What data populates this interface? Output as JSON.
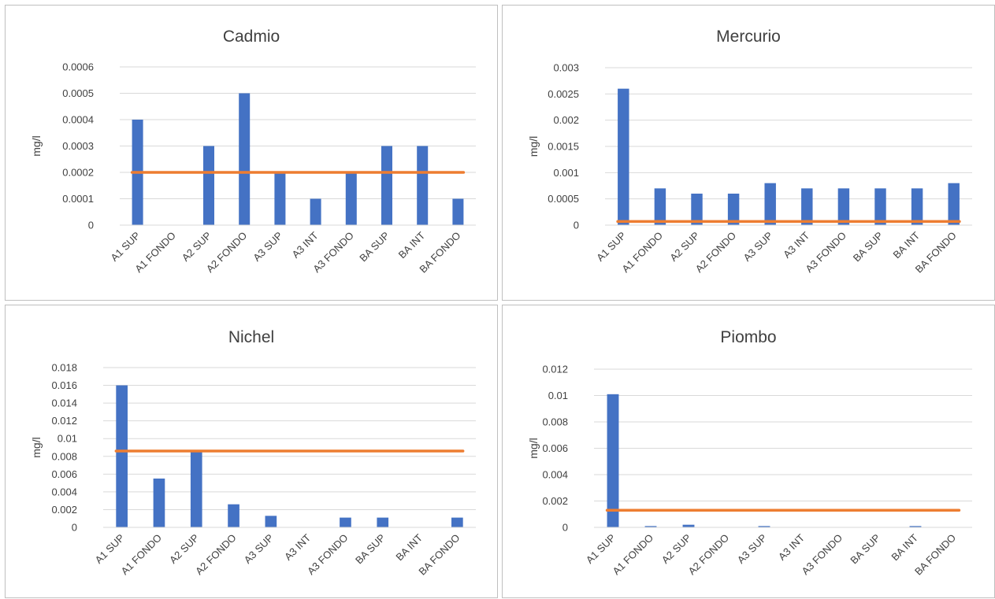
{
  "chart_data": [
    {
      "type": "bar",
      "title": "Cadmio",
      "ylabel": "mg/l",
      "xlabel": "",
      "categories": [
        "A1 SUP",
        "A1 FONDO",
        "A2 SUP",
        "A2 FONDO",
        "A3 SUP",
        "A3 INT",
        "A3 FONDO",
        "BA SUP",
        "BA INT",
        "BA FONDO"
      ],
      "yticks": [
        "0",
        "0.0001",
        "0.0002",
        "0.0003",
        "0.0004",
        "0.0005",
        "0.0006"
      ],
      "ylim": [
        0,
        0.0006
      ],
      "grid": true,
      "series": [
        {
          "kind": "bar",
          "color": "#4472c4",
          "values": [
            0.0004,
            0,
            0.0003,
            0.0005,
            0.0002,
            0.0001,
            0.0002,
            0.0003,
            0.0003,
            0.0001
          ]
        },
        {
          "kind": "line",
          "color": "#ed7d31",
          "values": [
            0.0002,
            0.0002,
            0.0002,
            0.0002,
            0.0002,
            0.0002,
            0.0002,
            0.0002,
            0.0002,
            0.0002
          ]
        }
      ]
    },
    {
      "type": "bar",
      "title": "Mercurio",
      "ylabel": "mg/l",
      "xlabel": "",
      "categories": [
        "A1 SUP",
        "A1 FONDO",
        "A2 SUP",
        "A2 FONDO",
        "A3 SUP",
        "A3 INT",
        "A3 FONDO",
        "BA SUP",
        "BA INT",
        "BA FONDO"
      ],
      "yticks": [
        "0",
        "0.0005",
        "0.001",
        "0.0015",
        "0.002",
        "0.0025",
        "0.003"
      ],
      "ylim": [
        0,
        0.003
      ],
      "grid": true,
      "series": [
        {
          "kind": "bar",
          "color": "#4472c4",
          "values": [
            0.0026,
            0.0007,
            0.0006,
            0.0006,
            0.0008,
            0.0007,
            0.0007,
            0.0007,
            0.0007,
            0.0008
          ]
        },
        {
          "kind": "line",
          "color": "#ed7d31",
          "values": [
            7e-05,
            7e-05,
            7e-05,
            7e-05,
            7e-05,
            7e-05,
            7e-05,
            7e-05,
            7e-05,
            7e-05
          ]
        }
      ]
    },
    {
      "type": "bar",
      "title": "Nichel",
      "ylabel": "mg/l",
      "xlabel": "",
      "categories": [
        "A1 SUP",
        "A1 FONDO",
        "A2 SUP",
        "A2 FONDO",
        "A3 SUP",
        "A3 INT",
        "A3 FONDO",
        "BA SUP",
        "BA INT",
        "BA FONDO"
      ],
      "yticks": [
        "0",
        "0.002",
        "0.004",
        "0.006",
        "0.008",
        "0.01",
        "0.012",
        "0.014",
        "0.016",
        "0.018"
      ],
      "ylim": [
        0,
        0.018
      ],
      "grid": true,
      "series": [
        {
          "kind": "bar",
          "color": "#4472c4",
          "values": [
            0.016,
            0.0055,
            0.0086,
            0.0026,
            0.0013,
            0,
            0.0011,
            0.0011,
            0,
            0.0011
          ]
        },
        {
          "kind": "line",
          "color": "#ed7d31",
          "values": [
            0.0086,
            0.0086,
            0.0086,
            0.0086,
            0.0086,
            0.0086,
            0.0086,
            0.0086,
            0.0086,
            0.0086
          ]
        }
      ]
    },
    {
      "type": "bar",
      "title": "Piombo",
      "ylabel": "mg/l",
      "xlabel": "",
      "categories": [
        "A1 SUP",
        "A1 FONDO",
        "A2 SUP",
        "A2 FONDO",
        "A3 SUP",
        "A3 INT",
        "A3 FONDO",
        "BA SUP",
        "BA INT",
        "BA FONDO"
      ],
      "yticks": [
        "0",
        "0.002",
        "0.004",
        "0.006",
        "0.008",
        "0.01",
        "0.012"
      ],
      "ylim": [
        0,
        0.012
      ],
      "grid": true,
      "series": [
        {
          "kind": "bar",
          "color": "#4472c4",
          "values": [
            0.0101,
            0.0001,
            0.0002,
            0,
            0.0001,
            0,
            0,
            0,
            0.0001,
            0
          ]
        },
        {
          "kind": "line",
          "color": "#ed7d31",
          "values": [
            0.0013,
            0.0013,
            0.0013,
            0.0013,
            0.0013,
            0.0013,
            0.0013,
            0.0013,
            0.0013,
            0.0013
          ]
        }
      ]
    }
  ]
}
